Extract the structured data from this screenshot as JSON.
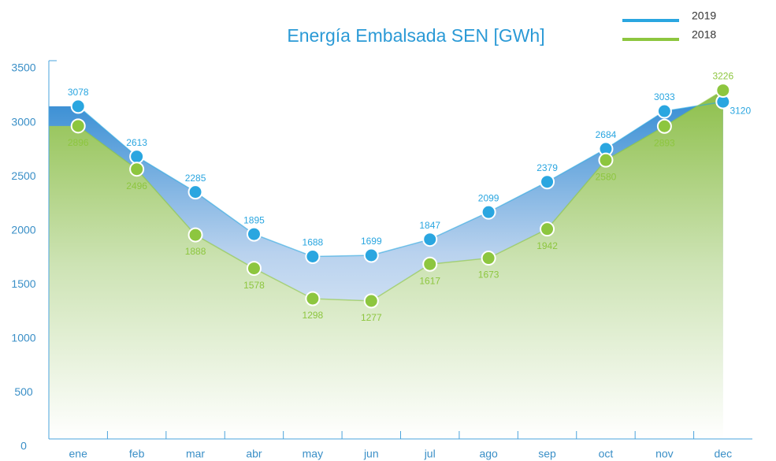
{
  "chart_data": {
    "type": "area",
    "title": "Energía Embalsada SEN [GWh]",
    "categories": [
      "ene",
      "feb",
      "mar",
      "abr",
      "may",
      "jun",
      "jul",
      "ago",
      "sep",
      "oct",
      "nov",
      "dec"
    ],
    "series": [
      {
        "name": "2019",
        "color": "#2aa6e0",
        "values": [
          3078,
          2613,
          2285,
          1895,
          1688,
          1699,
          1847,
          2099,
          2379,
          2684,
          3033,
          3120
        ]
      },
      {
        "name": "2018",
        "color": "#8dc63f",
        "values": [
          2896,
          2496,
          1888,
          1578,
          1298,
          1277,
          1617,
          1673,
          1942,
          2580,
          2893,
          3226
        ]
      }
    ],
    "ylim": [
      0,
      3500
    ],
    "yticks": [
      0,
      500,
      1000,
      1500,
      2000,
      2500,
      3000,
      3500
    ],
    "legend": "top-right"
  }
}
